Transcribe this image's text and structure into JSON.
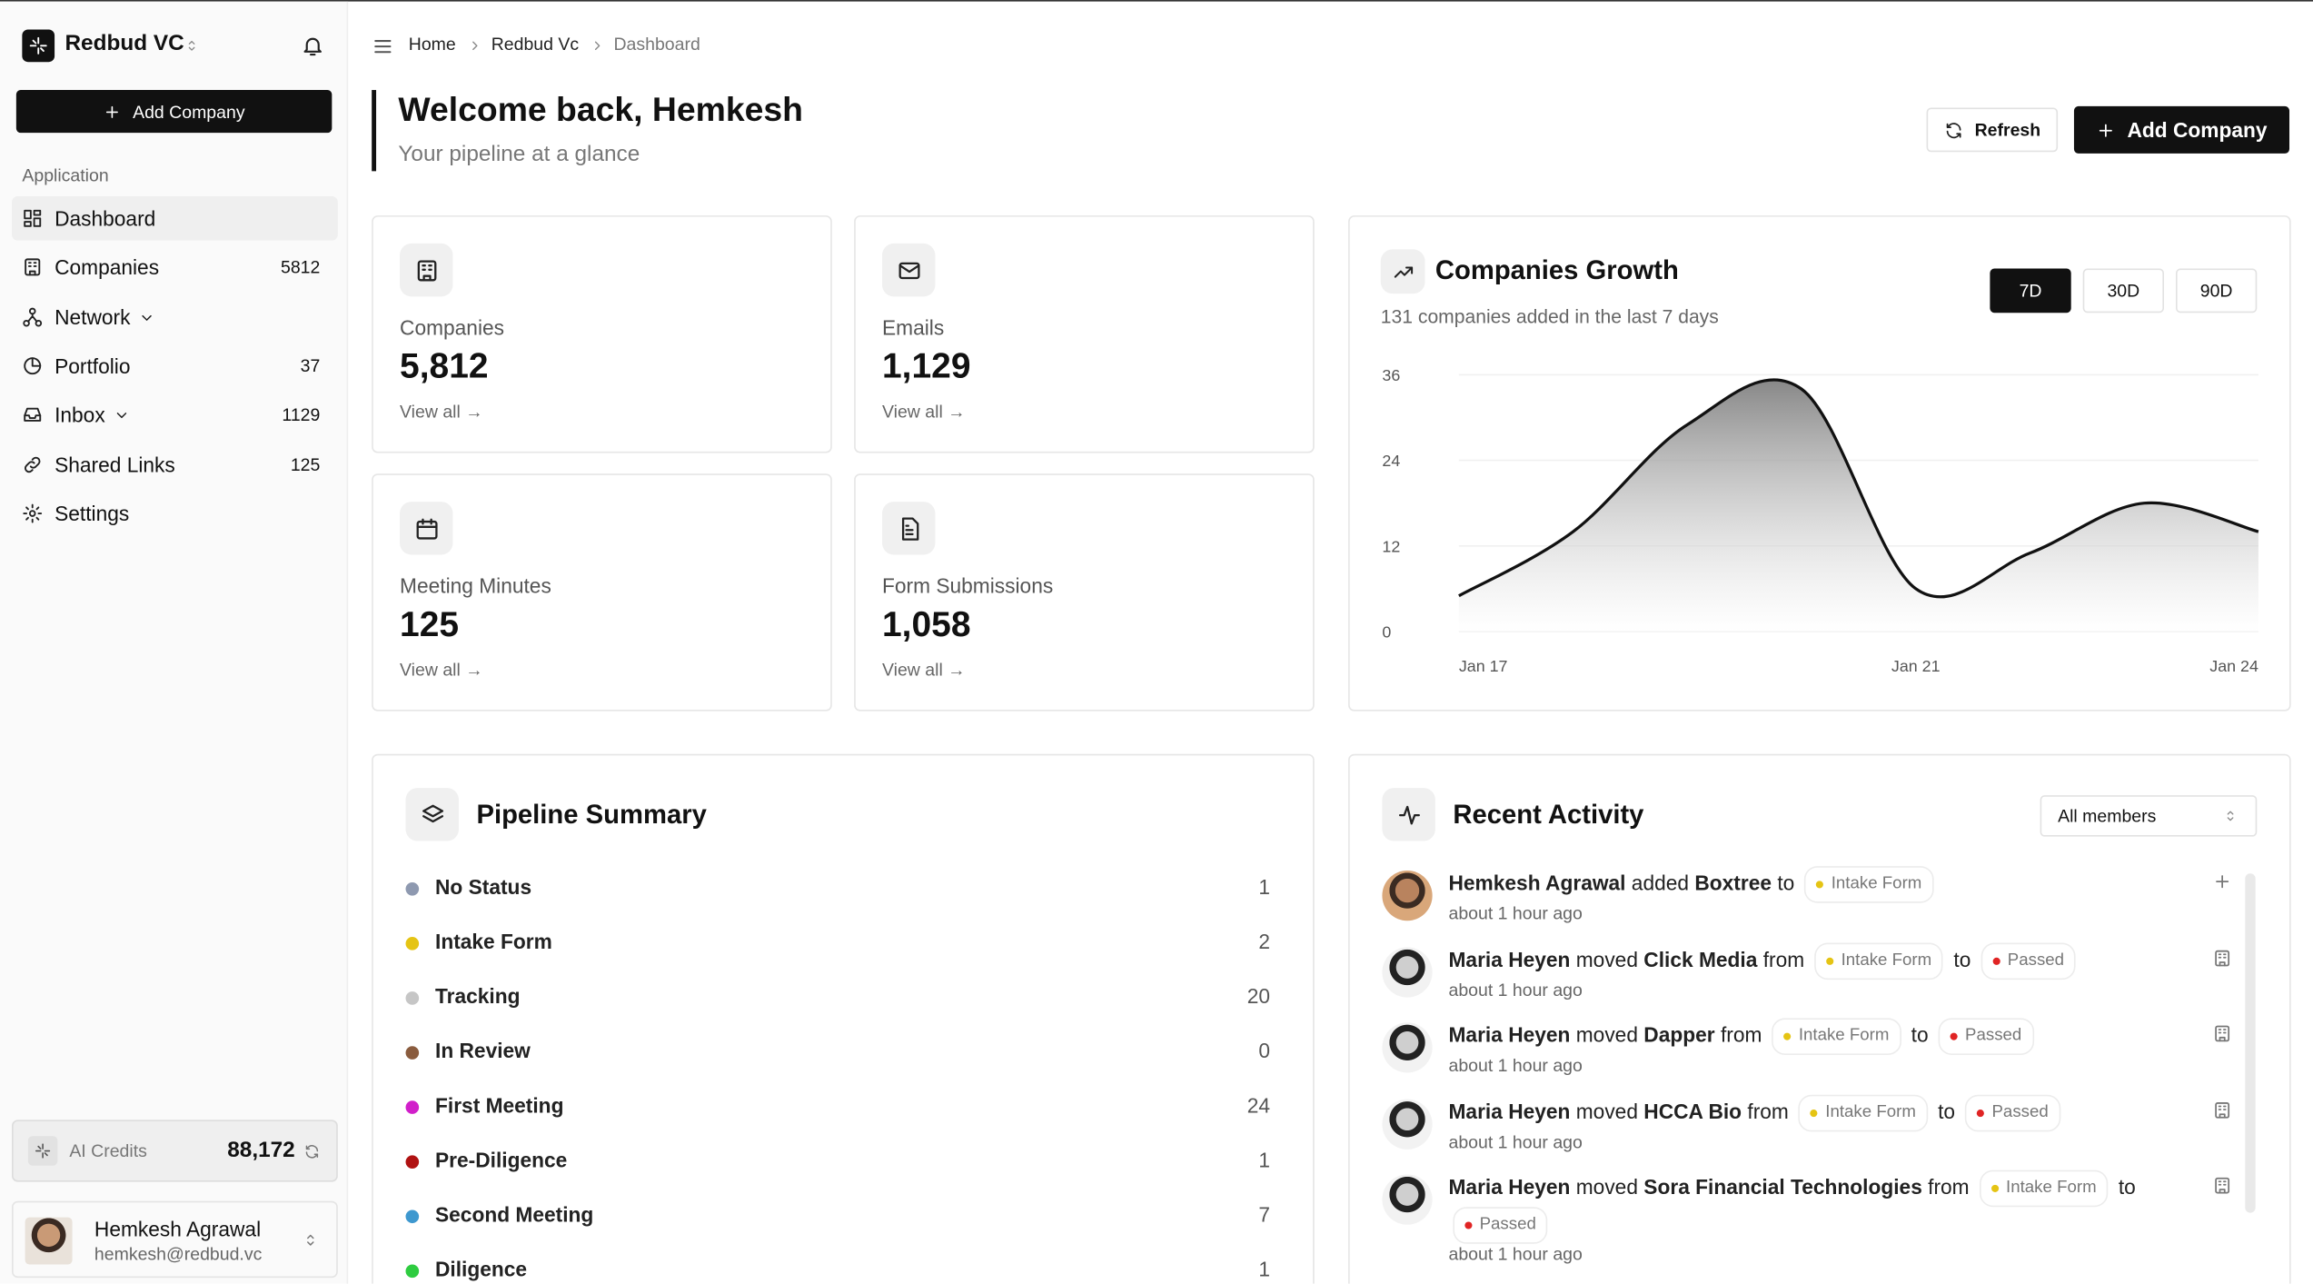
{
  "sidebar": {
    "org": "Redbud VC",
    "add_button": "Add Company",
    "section": "Application",
    "nav": [
      {
        "label": "Dashboard",
        "active": true
      },
      {
        "label": "Companies",
        "count": "5812"
      },
      {
        "label": "Network",
        "expandable": true
      },
      {
        "label": "Portfolio",
        "count": "37"
      },
      {
        "label": "Inbox",
        "count": "1129",
        "expandable": true
      },
      {
        "label": "Shared Links",
        "count": "125"
      },
      {
        "label": "Settings"
      }
    ],
    "credits": {
      "label": "AI Credits",
      "value": "88,172"
    },
    "user": {
      "name": "Hemkesh Agrawal",
      "email": "hemkesh@redbud.vc"
    }
  },
  "header": {
    "breadcrumbs": [
      "Home",
      "Redbud Vc",
      "Dashboard"
    ],
    "title": "Welcome back, Hemkesh",
    "subtitle": "Your pipeline at a glance",
    "refresh": "Refresh",
    "add_button": "Add Company"
  },
  "stats": [
    {
      "label": "Companies",
      "value": "5,812",
      "link": "View all →"
    },
    {
      "label": "Emails",
      "value": "1,129",
      "link": "View all →"
    },
    {
      "label": "Meeting Minutes",
      "value": "125",
      "link": "View all →"
    },
    {
      "label": "Form Submissions",
      "value": "1,058",
      "link": "View all →"
    }
  ],
  "chart_data": {
    "type": "area",
    "title": "Companies Growth",
    "subtitle": "131 companies added in the last 7 days",
    "ranges": [
      "7D",
      "30D",
      "90D"
    ],
    "active_range": 0,
    "categories": [
      "Jan 17",
      null,
      null,
      null,
      "Jan 21",
      null,
      null,
      "Jan 24"
    ],
    "values": [
      5,
      14,
      29,
      34,
      6,
      11,
      18,
      14
    ],
    "ylim": [
      0,
      36
    ],
    "yticks": [
      0,
      12,
      24,
      36
    ],
    "grid": true,
    "color": "#111111"
  },
  "pipeline": {
    "title": "Pipeline Summary",
    "items": [
      {
        "label": "No Status",
        "count": "1",
        "color": "#8e99b0"
      },
      {
        "label": "Intake Form",
        "count": "2",
        "color": "#e5c414"
      },
      {
        "label": "Tracking",
        "count": "20",
        "color": "#c6c6c6"
      },
      {
        "label": "In Review",
        "count": "0",
        "color": "#8a5c3e"
      },
      {
        "label": "First Meeting",
        "count": "24",
        "color": "#d11fca"
      },
      {
        "label": "Pre-Diligence",
        "count": "1",
        "color": "#b01212"
      },
      {
        "label": "Second Meeting",
        "count": "7",
        "color": "#3e98cf"
      },
      {
        "label": "Diligence",
        "count": "1",
        "color": "#2ecc40"
      }
    ]
  },
  "activity": {
    "title": "Recent Activity",
    "filter": "All members",
    "items": [
      {
        "segments": [
          {
            "text": "Hemkesh Agrawal",
            "strong": true
          },
          {
            "text": "added"
          },
          {
            "text": "Boxtree",
            "strong": true
          },
          {
            "text": "to"
          },
          {
            "pill": "Intake Form",
            "color": "#e5c414"
          }
        ],
        "time": "about 1 hour ago"
      },
      {
        "segments": [
          {
            "text": "Maria Heyen",
            "strong": true
          },
          {
            "text": "moved"
          },
          {
            "text": "Click Media",
            "strong": true
          },
          {
            "text": "from"
          },
          {
            "pill": "Intake Form",
            "color": "#e5c414"
          },
          {
            "text": "to"
          },
          {
            "pill": "Passed",
            "color": "#e02424"
          }
        ],
        "time": "about 1 hour ago"
      },
      {
        "segments": [
          {
            "text": "Maria Heyen",
            "strong": true
          },
          {
            "text": "moved"
          },
          {
            "text": "Dapper",
            "strong": true
          },
          {
            "text": "from"
          },
          {
            "pill": "Intake Form",
            "color": "#e5c414"
          },
          {
            "text": "to"
          },
          {
            "pill": "Passed",
            "color": "#e02424"
          }
        ],
        "time": "about 1 hour ago"
      },
      {
        "segments": [
          {
            "text": "Maria Heyen",
            "strong": true
          },
          {
            "text": "moved"
          },
          {
            "text": "HCCA Bio",
            "strong": true
          },
          {
            "text": "from"
          },
          {
            "pill": "Intake Form",
            "color": "#e5c414"
          },
          {
            "text": "to"
          },
          {
            "pill": "Passed",
            "color": "#e02424"
          }
        ],
        "time": "about 1 hour ago"
      },
      {
        "segments": [
          {
            "text": "Maria Heyen",
            "strong": true
          },
          {
            "text": "moved"
          },
          {
            "text": "Sora Financial Technologies",
            "strong": true
          },
          {
            "text": "from"
          },
          {
            "pill": "Intake Form",
            "color": "#e5c414"
          },
          {
            "text": "to"
          },
          {
            "pill": "Passed",
            "color": "#e02424"
          }
        ],
        "time": "about 1 hour ago"
      }
    ]
  }
}
